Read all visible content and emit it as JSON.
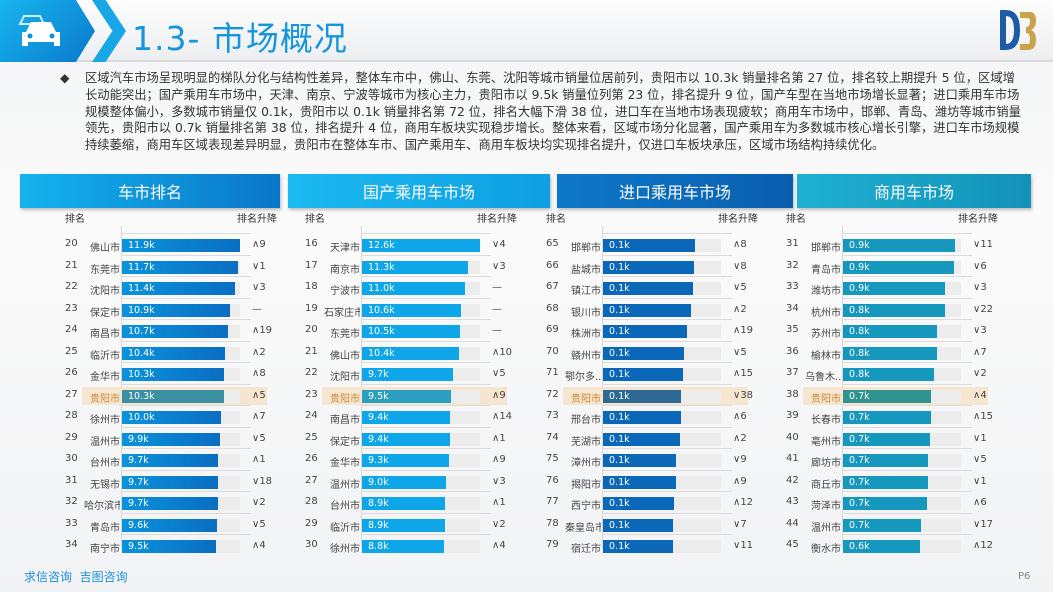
{
  "header": {
    "title": "1.3- 市场概况",
    "logo_text": "DB",
    "icon": "car-icon"
  },
  "summary": {
    "bullet": "◆",
    "text": "区域汽车市场呈现明显的梯队分化与结构性差异，整体车市中，佛山、东莞、沈阳等城市销量位居前列，贵阳市以 10.3k 销量排名第 27 位，排名较上期提升 5 位，区域增长动能突出；国产乘用车市场中，天津、南京、宁波等城市为核心主力，贵阳市以 9.5k 销量位列第 23 位，排名提升 9 位，国产车型在当地市场增长显著；进口乘用车市场规模整体偏小，多数城市销量仅 0.1k，贵阳市以 0.1k 销量排名第 72 位，排名大幅下滑 38 位，进口车在当地市场表现疲软；商用车市场中，邯郸、青岛、潍坊等城市销量领先，贵阳市以 0.7k 销量排名第 38 位，排名提升 4 位，商用车板块实现稳步增长。整体来看，区域市场分化显著，国产乘用车为多数城市核心增长引擎，进口车市场规模持续萎缩，商用车区域表现差异明显，贵阳市在整体车市、国产乘用车、商用车板块均实现排名提升，仅进口车板块承压，区域市场结构持续优化。"
  },
  "colors": {
    "highlight": "#f7e6cf",
    "tab_overall": "#0d8fdc",
    "tab_domestic": "#12a9ea",
    "tab_import": "#0a66b8",
    "tab_commercial": "#1699bd"
  },
  "col_rank": "排名",
  "col_change": "排名升降",
  "highlight_city": "贵阳市",
  "tables": [
    {
      "title": "车市排名",
      "rows": [
        {
          "rank": "20",
          "city": "佛山市",
          "value": "11.9k",
          "num": 11.9,
          "change": "∧9"
        },
        {
          "rank": "21",
          "city": "东莞市",
          "value": "11.7k",
          "num": 11.7,
          "change": "∨1"
        },
        {
          "rank": "22",
          "city": "沈阳市",
          "value": "11.4k",
          "num": 11.4,
          "change": "∨3"
        },
        {
          "rank": "23",
          "city": "保定市",
          "value": "10.9k",
          "num": 10.9,
          "change": "—"
        },
        {
          "rank": "24",
          "city": "南昌市",
          "value": "10.7k",
          "num": 10.7,
          "change": "∧19"
        },
        {
          "rank": "25",
          "city": "临沂市",
          "value": "10.4k",
          "num": 10.4,
          "change": "∧2"
        },
        {
          "rank": "26",
          "city": "金华市",
          "value": "10.3k",
          "num": 10.3,
          "change": "∧8"
        },
        {
          "rank": "27",
          "city": "贵阳市",
          "value": "10.3k",
          "num": 10.3,
          "change": "∧5"
        },
        {
          "rank": "28",
          "city": "徐州市",
          "value": "10.0k",
          "num": 10.0,
          "change": "∧7"
        },
        {
          "rank": "29",
          "city": "温州市",
          "value": "9.9k",
          "num": 9.9,
          "change": "∨5"
        },
        {
          "rank": "30",
          "city": "台州市",
          "value": "9.7k",
          "num": 9.7,
          "change": "∧1"
        },
        {
          "rank": "31",
          "city": "无锡市",
          "value": "9.7k",
          "num": 9.7,
          "change": "∨18"
        },
        {
          "rank": "32",
          "city": "哈尔滨市",
          "value": "9.7k",
          "num": 9.7,
          "change": "∨2"
        },
        {
          "rank": "33",
          "city": "青岛市",
          "value": "9.6k",
          "num": 9.6,
          "change": "∨5"
        },
        {
          "rank": "34",
          "city": "南宁市",
          "value": "9.5k",
          "num": 9.5,
          "change": "∧4"
        }
      ]
    },
    {
      "title": "国产乘用车市场",
      "rows": [
        {
          "rank": "16",
          "city": "天津市",
          "value": "12.6k",
          "num": 12.6,
          "change": "∨4"
        },
        {
          "rank": "17",
          "city": "南京市",
          "value": "11.3k",
          "num": 11.3,
          "change": "∨3"
        },
        {
          "rank": "18",
          "city": "宁波市",
          "value": "11.0k",
          "num": 11.0,
          "change": "—"
        },
        {
          "rank": "19",
          "city": "石家庄市",
          "value": "10.6k",
          "num": 10.6,
          "change": "—"
        },
        {
          "rank": "20",
          "city": "东莞市",
          "value": "10.5k",
          "num": 10.5,
          "change": "—"
        },
        {
          "rank": "21",
          "city": "佛山市",
          "value": "10.4k",
          "num": 10.4,
          "change": "∧10"
        },
        {
          "rank": "22",
          "city": "沈阳市",
          "value": "9.7k",
          "num": 9.7,
          "change": "∨5"
        },
        {
          "rank": "23",
          "city": "贵阳市",
          "value": "9.5k",
          "num": 9.5,
          "change": "∧9"
        },
        {
          "rank": "24",
          "city": "南昌市",
          "value": "9.4k",
          "num": 9.4,
          "change": "∧14"
        },
        {
          "rank": "25",
          "city": "保定市",
          "value": "9.4k",
          "num": 9.4,
          "change": "∧1"
        },
        {
          "rank": "26",
          "city": "金华市",
          "value": "9.3k",
          "num": 9.3,
          "change": "∧9"
        },
        {
          "rank": "27",
          "city": "温州市",
          "value": "9.0k",
          "num": 9.0,
          "change": "∨3"
        },
        {
          "rank": "28",
          "city": "台州市",
          "value": "8.9k",
          "num": 8.9,
          "change": "∧1"
        },
        {
          "rank": "29",
          "city": "临沂市",
          "value": "8.9k",
          "num": 8.9,
          "change": "∨2"
        },
        {
          "rank": "30",
          "city": "徐州市",
          "value": "8.8k",
          "num": 8.8,
          "change": "∧4"
        }
      ]
    },
    {
      "title": "进口乘用车市场",
      "rows": [
        {
          "rank": "65",
          "city": "邯郸市",
          "value": "0.1k",
          "fill": 0.66,
          "change": "∧8"
        },
        {
          "rank": "66",
          "city": "盐城市",
          "value": "0.1k",
          "fill": 0.65,
          "change": "∨8"
        },
        {
          "rank": "67",
          "city": "镇江市",
          "value": "0.1k",
          "fill": 0.64,
          "change": "∨5"
        },
        {
          "rank": "68",
          "city": "银川市",
          "value": "0.1k",
          "fill": 0.63,
          "change": "∧2"
        },
        {
          "rank": "69",
          "city": "株洲市",
          "value": "0.1k",
          "fill": 0.6,
          "change": "∧19"
        },
        {
          "rank": "70",
          "city": "赣州市",
          "value": "0.1k",
          "fill": 0.58,
          "change": "∨5"
        },
        {
          "rank": "71",
          "city": "鄂尔多...",
          "value": "0.1k",
          "fill": 0.57,
          "change": "∧15"
        },
        {
          "rank": "72",
          "city": "贵阳市",
          "value": "0.1k",
          "fill": 0.56,
          "change": "∨38"
        },
        {
          "rank": "73",
          "city": "邢台市",
          "value": "0.1k",
          "fill": 0.56,
          "change": "∧6"
        },
        {
          "rank": "74",
          "city": "芜湖市",
          "value": "0.1k",
          "fill": 0.55,
          "change": "∧2"
        },
        {
          "rank": "75",
          "city": "漳州市",
          "value": "0.1k",
          "fill": 0.52,
          "change": "∨9"
        },
        {
          "rank": "76",
          "city": "揭阳市",
          "value": "0.1k",
          "fill": 0.52,
          "change": "∧9"
        },
        {
          "rank": "77",
          "city": "西宁市",
          "value": "0.1k",
          "fill": 0.51,
          "change": "∧12"
        },
        {
          "rank": "78",
          "city": "秦皇岛市",
          "value": "0.1k",
          "fill": 0.5,
          "change": "∨7"
        },
        {
          "rank": "79",
          "city": "宿迁市",
          "value": "0.1k",
          "fill": 0.5,
          "change": "∨11"
        }
      ]
    },
    {
      "title": "商用车市场",
      "rows": [
        {
          "rank": "31",
          "city": "邯郸市",
          "value": "0.9k",
          "fill": 0.8,
          "change": "∨11"
        },
        {
          "rank": "32",
          "city": "青岛市",
          "value": "0.9k",
          "fill": 0.79,
          "change": "∨6"
        },
        {
          "rank": "33",
          "city": "潍坊市",
          "value": "0.9k",
          "fill": 0.73,
          "change": "∨3"
        },
        {
          "rank": "34",
          "city": "杭州市",
          "value": "0.8k",
          "fill": 0.73,
          "change": "∨22"
        },
        {
          "rank": "35",
          "city": "苏州市",
          "value": "0.8k",
          "fill": 0.67,
          "change": "∨3"
        },
        {
          "rank": "36",
          "city": "榆林市",
          "value": "0.8k",
          "fill": 0.67,
          "change": "∧7"
        },
        {
          "rank": "37",
          "city": "乌鲁木...",
          "value": "0.8k",
          "fill": 0.65,
          "change": "∨2"
        },
        {
          "rank": "38",
          "city": "贵阳市",
          "value": "0.7k",
          "fill": 0.63,
          "change": "∧4"
        },
        {
          "rank": "39",
          "city": "长春市",
          "value": "0.7k",
          "fill": 0.63,
          "change": "∧15"
        },
        {
          "rank": "40",
          "city": "亳州市",
          "value": "0.7k",
          "fill": 0.62,
          "change": "∨1"
        },
        {
          "rank": "41",
          "city": "廊坊市",
          "value": "0.7k",
          "fill": 0.61,
          "change": "∨5"
        },
        {
          "rank": "42",
          "city": "商丘市",
          "value": "0.7k",
          "fill": 0.61,
          "change": "∨1"
        },
        {
          "rank": "43",
          "city": "菏泽市",
          "value": "0.7k",
          "fill": 0.6,
          "change": "∧6"
        },
        {
          "rank": "44",
          "city": "温州市",
          "value": "0.7k",
          "fill": 0.56,
          "change": "∨17"
        },
        {
          "rank": "45",
          "city": "衡水市",
          "value": "0.6k",
          "fill": 0.55,
          "change": "∧12"
        }
      ]
    }
  ],
  "footer": {
    "source": "求信咨询  吉图咨询",
    "page": "P6"
  }
}
